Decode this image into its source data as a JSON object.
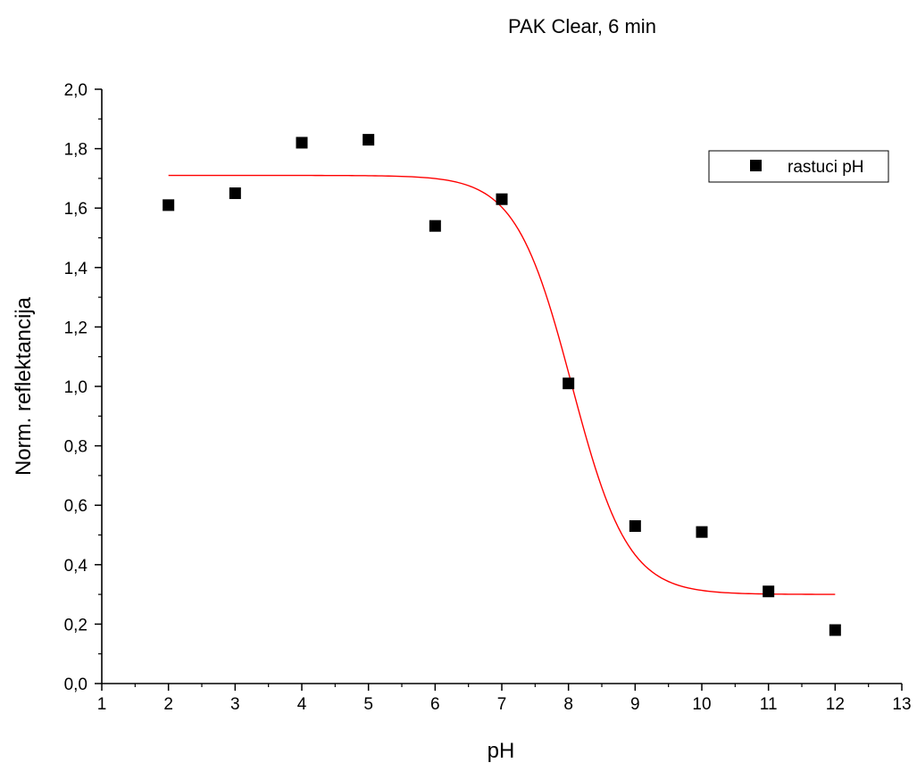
{
  "chart_data": {
    "type": "scatter",
    "title": "PAK Clear, 6 min",
    "xlabel": "pH",
    "ylabel": "Norm. reflektancija",
    "xlim": [
      1,
      13
    ],
    "ylim": [
      0.0,
      2.0
    ],
    "x_ticks": [
      "1",
      "2",
      "3",
      "4",
      "5",
      "6",
      "7",
      "8",
      "9",
      "10",
      "11",
      "12",
      "13"
    ],
    "y_ticks": [
      "0,0",
      "0,2",
      "0,4",
      "0,6",
      "0,8",
      "1,0",
      "1,2",
      "1,4",
      "1,6",
      "1,8",
      "2,0"
    ],
    "grid": false,
    "legend_position": "top-right",
    "series": [
      {
        "name": "rastuci pH",
        "marker": "square",
        "color": "#000000",
        "x": [
          2,
          3,
          4,
          5,
          6,
          7,
          8,
          9,
          10,
          11,
          12
        ],
        "y": [
          1.61,
          1.65,
          1.82,
          1.83,
          1.54,
          1.63,
          1.01,
          0.53,
          0.51,
          0.31,
          0.18
        ]
      }
    ],
    "fit_curve": {
      "color": "#ff0000",
      "x_range": [
        2,
        12
      ],
      "top": 1.71,
      "bottom": 0.3,
      "midpoint": 8.05,
      "slope": 0.42
    }
  }
}
